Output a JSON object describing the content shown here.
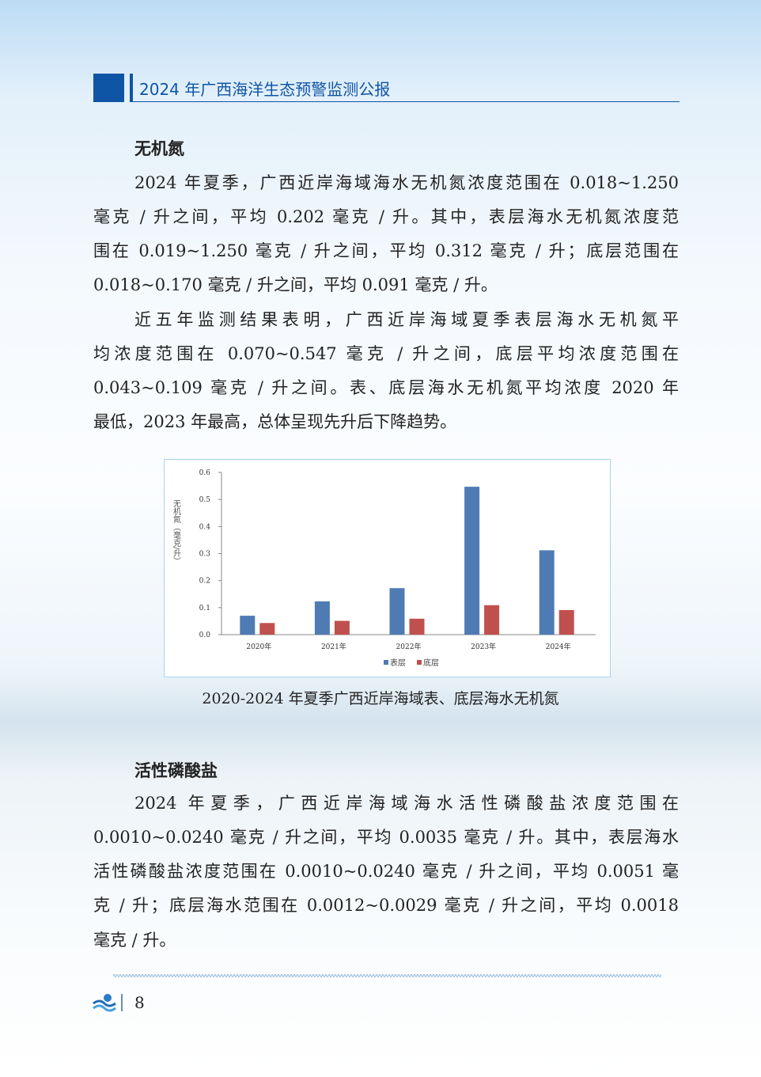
{
  "header": {
    "title": "2024 年广西海洋生态预警监测公报"
  },
  "section1": {
    "heading": "无机氮",
    "lines": [
      "2024 年夏季，广西近岸海域海水无机氮浓度范围在 0.018~1.250",
      "毫克 / 升之间，平均 0.202 毫克 / 升。其中，表层海水无机氮浓度范",
      "围在 0.019~1.250 毫克 / 升之间，平均 0.312 毫克 / 升；底层范围在",
      "0.018~0.170 毫克 / 升之间，平均 0.091 毫克 / 升。",
      "近五年监测结果表明，广西近岸海域夏季表层海水无机氮平",
      "均浓度范围在 0.070~0.547 毫克 / 升之间，底层平均浓度范围在",
      "0.043~0.109 毫克 / 升之间。表、底层海水无机氮平均浓度 2020 年",
      "最低，2023 年最高，总体呈现先升后下降趋势。"
    ]
  },
  "chart_data": {
    "type": "bar",
    "categories": [
      "2020年",
      "2021年",
      "2022年",
      "2023年",
      "2024年"
    ],
    "series": [
      {
        "name": "表层",
        "values": [
          0.07,
          0.123,
          0.172,
          0.547,
          0.312
        ],
        "color": "#4f7bb5"
      },
      {
        "name": "底层",
        "values": [
          0.043,
          0.051,
          0.059,
          0.109,
          0.091
        ],
        "color": "#c0504d"
      }
    ],
    "ylabel": "无机氮（毫克/升）",
    "ylim": [
      0,
      0.6
    ],
    "yticks": [
      "0.0",
      "0.1",
      "0.2",
      "0.3",
      "0.4",
      "0.5",
      "0.6"
    ],
    "legend": "bottom",
    "grid": false
  },
  "caption": "2020-2024 年夏季广西近岸海域表、底层海水无机氮",
  "section2": {
    "heading": "活性磷酸盐",
    "lines": [
      "2024 年夏季，广西近岸海域海水活性磷酸盐浓度范围在",
      "0.0010~0.0240 毫克 / 升之间，平均 0.0035 毫克 / 升。其中，表层海水",
      "活性磷酸盐浓度范围在 0.0010~0.0240 毫克 / 升之间，平均 0.0051 毫",
      "克 / 升；底层海水范围在 0.0012~0.0029 毫克 / 升之间，平均 0.0018",
      "毫克 / 升。"
    ]
  },
  "footer": {
    "page": "8"
  }
}
